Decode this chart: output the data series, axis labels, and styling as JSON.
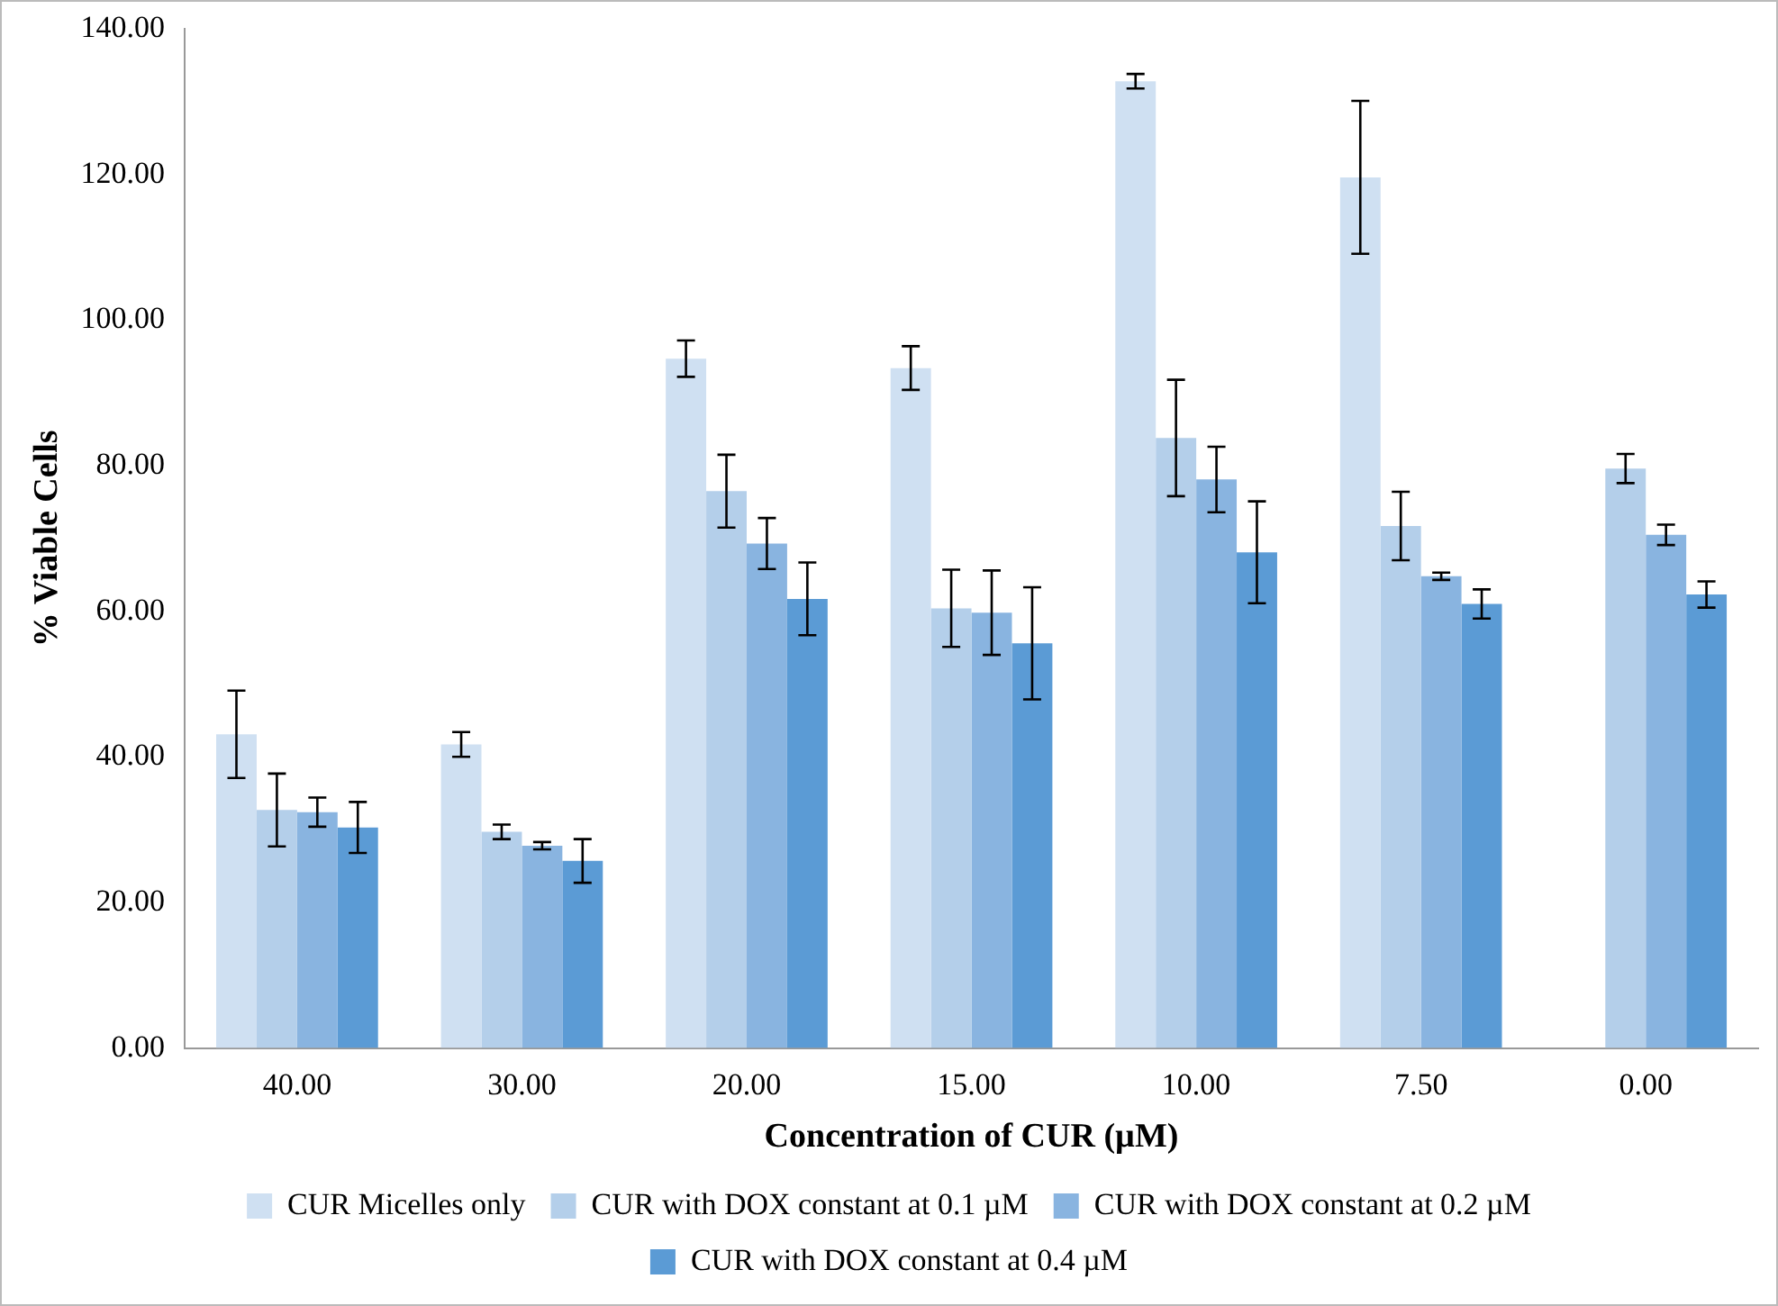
{
  "chart_data": {
    "type": "bar",
    "xlabel": "Concentration of CUR (µM)",
    "ylabel": "% Viable Cells",
    "categories": [
      "40.00",
      "30.00",
      "20.00",
      "15.00",
      "10.00",
      "7.50",
      "0.00"
    ],
    "series": [
      {
        "name": "CUR Micelles only",
        "color": "#cfe0f2",
        "values": [
          43.1,
          41.7,
          94.7,
          93.4,
          132.8,
          119.6,
          null
        ],
        "errors": [
          6.0,
          1.7,
          2.5,
          3.0,
          1.0,
          10.5,
          null
        ]
      },
      {
        "name": "CUR with DOX constant at 0.1 µM",
        "color": "#b4cfea",
        "values": [
          32.7,
          29.7,
          76.5,
          60.4,
          83.8,
          71.7,
          79.6
        ],
        "errors": [
          5.0,
          1.0,
          5.0,
          5.3,
          8.0,
          4.7,
          2.0
        ]
      },
      {
        "name": "CUR with DOX constant at 0.2 µM",
        "color": "#89b4e0",
        "values": [
          32.4,
          27.8,
          69.3,
          59.8,
          78.1,
          64.8,
          70.5
        ],
        "errors": [
          2.0,
          0.5,
          3.5,
          5.8,
          4.5,
          0.5,
          1.4
        ]
      },
      {
        "name": "CUR with DOX constant at 0.4 µM",
        "color": "#5b9bd5",
        "values": [
          30.3,
          25.7,
          61.7,
          55.6,
          68.1,
          61.0,
          62.3
        ],
        "errors": [
          3.5,
          3.0,
          5.0,
          7.7,
          7.0,
          2.0,
          1.8
        ]
      }
    ],
    "ylim": [
      0,
      140
    ],
    "yticks": [
      {
        "value": 0,
        "label": "0.00"
      },
      {
        "value": 20,
        "label": "20.00"
      },
      {
        "value": 40,
        "label": "40.00"
      },
      {
        "value": 60,
        "label": "60.00"
      },
      {
        "value": 80,
        "label": "80.00"
      },
      {
        "value": 100,
        "label": "100.00"
      },
      {
        "value": 120,
        "label": "120.00"
      },
      {
        "value": 140,
        "label": "140.00"
      }
    ],
    "grid": false,
    "legend": "bottom"
  }
}
